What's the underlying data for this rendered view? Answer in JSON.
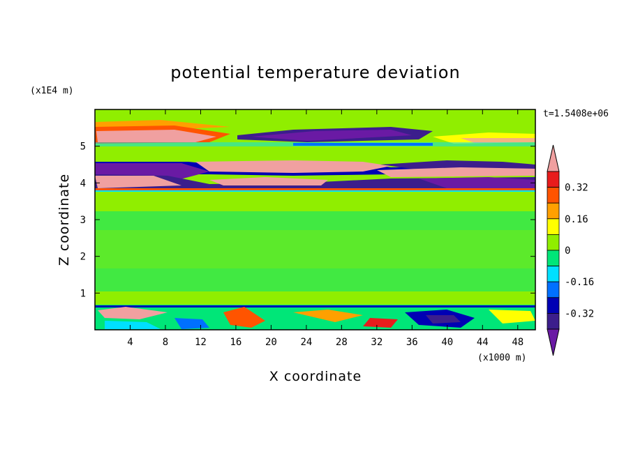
{
  "chart_data": {
    "type": "heatmap",
    "title": "potential temperature deviation",
    "xlabel": "X coordinate",
    "ylabel": "Z coordinate",
    "x_unit": "(x1000 m)",
    "y_unit": "(x1E4 m)",
    "time_label": "t=1.5408e+06",
    "xlim": [
      0,
      50
    ],
    "ylim": [
      0,
      6
    ],
    "xticks": [
      "4",
      "8",
      "12",
      "16",
      "20",
      "24",
      "28",
      "32",
      "36",
      "40",
      "44",
      "48"
    ],
    "yticks": [
      "1",
      "2",
      "3",
      "4",
      "5"
    ],
    "colorbar": {
      "labels": [
        "0.32",
        "0.16",
        "0",
        "-0.16",
        "-0.32"
      ],
      "label_values": [
        0.32,
        0.16,
        0,
        -0.16,
        -0.32
      ],
      "levels": [
        0.4,
        0.32,
        0.24,
        0.16,
        0.08,
        0,
        -0.08,
        -0.16,
        -0.24,
        -0.32,
        -0.4
      ],
      "colors": [
        "#f0a0a0",
        "#e81c1c",
        "#ff5400",
        "#ffa000",
        "#ffff00",
        "#90ee00",
        "#00e678",
        "#00e0ff",
        "#0070ff",
        "#0000b4",
        "#3c1e8c",
        "#6a1aa4"
      ],
      "extend": "both"
    },
    "bands": [
      {
        "z0": 0.0,
        "z1": 0.6,
        "value": -0.05,
        "pattern": "turbulent"
      },
      {
        "z0": 0.6,
        "z1": 0.65,
        "value": -0.33,
        "pattern": "thin-layer"
      },
      {
        "z0": 0.65,
        "z1": 3.8,
        "value": 0.02,
        "pattern": "mottled"
      },
      {
        "z0": 3.8,
        "z1": 4.2,
        "value": 0.42,
        "pattern": "layer"
      },
      {
        "z0": 4.2,
        "z1": 4.7,
        "value": -0.43,
        "pattern": "layer"
      },
      {
        "z0": 4.7,
        "z1": 5.0,
        "value": 0.05,
        "pattern": "mottled"
      },
      {
        "z0": 5.0,
        "z1": 5.4,
        "value": -0.43,
        "pattern": "layer"
      },
      {
        "z0": 5.4,
        "z1": 6.0,
        "value": 0.03,
        "pattern": "mottled"
      }
    ]
  }
}
